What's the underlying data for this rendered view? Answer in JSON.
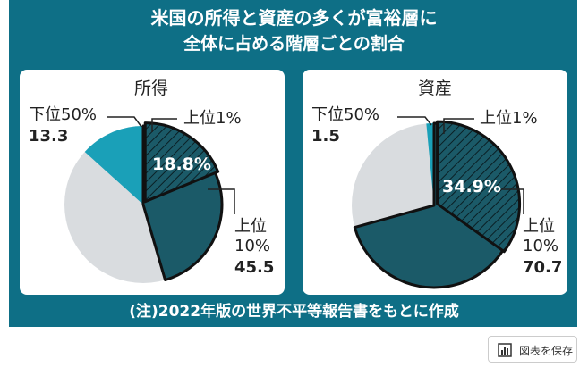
{
  "title": "米国の所得と資産の多くが富裕層に",
  "subtitle": "全体に占める階層ごとの割合",
  "note": "(注)2022年版の世界不平等報告書をもとに作成",
  "button": "図表を保存",
  "chart_data": [
    {
      "type": "pie",
      "title": "所得",
      "categories": [
        "上位1%",
        "上位10%",
        "下位50%"
      ],
      "values": [
        18.8,
        45.5,
        13.3
      ],
      "value_labels": [
        "18.8%",
        null,
        null
      ],
      "colors": [
        "#1b5a68",
        "#1b5a68",
        "#1aa0b8"
      ]
    },
    {
      "type": "pie",
      "title": "資産",
      "categories": [
        "上位1%",
        "上位10%",
        "下位50%"
      ],
      "values": [
        34.9,
        70.7,
        1.5
      ],
      "value_labels": [
        "34.9%",
        null,
        null
      ],
      "colors": [
        "#1b5a68",
        "#1b5a68",
        "#1aa0b8"
      ]
    }
  ]
}
